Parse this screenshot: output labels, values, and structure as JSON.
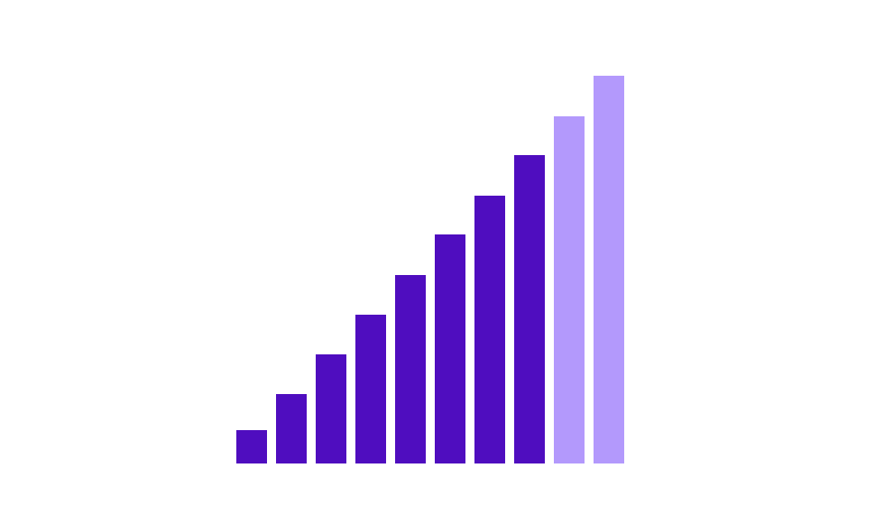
{
  "chart_data": {
    "type": "bar",
    "values": [
      37,
      77,
      121,
      165,
      209,
      254,
      297,
      342,
      385,
      430
    ],
    "colors": [
      "#4f0dbf",
      "#4f0dbf",
      "#4f0dbf",
      "#4f0dbf",
      "#4f0dbf",
      "#4f0dbf",
      "#4f0dbf",
      "#4f0dbf",
      "#b399fc",
      "#b399fc"
    ],
    "ylim": [
      0,
      430
    ]
  }
}
